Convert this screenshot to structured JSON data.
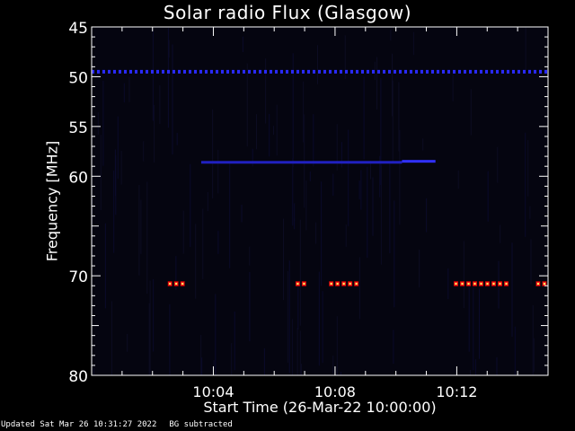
{
  "chart_data": {
    "type": "heatmap",
    "title": "Solar radio Flux (Glasgow)",
    "xlabel": "Start Time (26-Mar-22 10:00:00)",
    "ylabel": "Frequency [MHz]",
    "x_unit": "minutes after 10:00",
    "xlim": [
      0,
      15
    ],
    "ylim": [
      45,
      80
    ],
    "y_ticks": [
      "45",
      "50",
      "55",
      "60",
      "70",
      "80"
    ],
    "y_tick_values": [
      45,
      50,
      55,
      60,
      70,
      80
    ],
    "x_ticks": [
      "10:04",
      "10:08",
      "10:12"
    ],
    "x_tick_values": [
      4,
      8,
      12
    ],
    "background_color": "#050510",
    "features": [
      {
        "kind": "band",
        "freq_mhz": 49.5,
        "color": "#2a2aff",
        "intensity": "dotted, continuous across full time range"
      },
      {
        "kind": "band",
        "freq_mhz": 58.6,
        "from_min": 3.6,
        "to_min": 10.2,
        "color": "#2020c0"
      },
      {
        "kind": "band",
        "freq_mhz": 58.5,
        "from_min": 10.2,
        "to_min": 11.3,
        "color": "#3030ff"
      },
      {
        "kind": "burst",
        "freq_mhz": 70.8,
        "from_min": 2.5,
        "to_min": 3.0
      },
      {
        "kind": "burst",
        "freq_mhz": 70.8,
        "from_min": 6.7,
        "to_min": 7.1
      },
      {
        "kind": "burst",
        "freq_mhz": 70.8,
        "from_min": 7.8,
        "to_min": 8.8
      },
      {
        "kind": "burst",
        "freq_mhz": 70.8,
        "from_min": 11.9,
        "to_min": 13.7
      },
      {
        "kind": "burst",
        "freq_mhz": 70.8,
        "from_min": 14.6,
        "to_min": 15.0
      }
    ],
    "burst_colors": {
      "core": "#ffff60",
      "mid": "#ff2020",
      "edge": "#a00000"
    }
  },
  "footer": {
    "updated": "Updated Sat Mar 26 10:31:27 2022",
    "note": "BG subtracted"
  }
}
